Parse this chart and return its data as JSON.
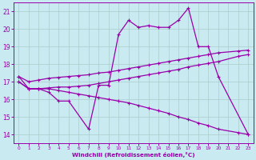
{
  "xlabel": "Windchill (Refroidissement éolien,°C)",
  "line_color": "#9900aa",
  "bg_color": "#c8eaf0",
  "grid_color": "#aacccc",
  "ylim": [
    13.5,
    21.5
  ],
  "yticks": [
    14,
    15,
    16,
    17,
    18,
    19,
    20,
    21
  ],
  "xlim": [
    -0.5,
    23.5
  ],
  "xticks": [
    0,
    1,
    2,
    3,
    4,
    5,
    6,
    7,
    8,
    9,
    10,
    11,
    12,
    13,
    14,
    15,
    16,
    17,
    18,
    19,
    20,
    21,
    22,
    23
  ],
  "s1_x": [
    0,
    1,
    2,
    3,
    4,
    5,
    7,
    8,
    9,
    10,
    11,
    12,
    13,
    14,
    15,
    16,
    17,
    18,
    19,
    20,
    23
  ],
  "s1_y": [
    17.3,
    16.6,
    16.6,
    16.4,
    15.9,
    15.9,
    14.3,
    16.8,
    16.8,
    19.7,
    20.5,
    20.1,
    20.2,
    20.1,
    20.1,
    20.5,
    21.2,
    19.0,
    19.0,
    17.3,
    14.0
  ],
  "s2_x": [
    0,
    1,
    2,
    3,
    4,
    5,
    6,
    7,
    8,
    9,
    10,
    11,
    12,
    13,
    14,
    15,
    16,
    17,
    18,
    19,
    20,
    22,
    23
  ],
  "s2_y": [
    17.3,
    17.0,
    17.1,
    17.2,
    17.25,
    17.3,
    17.35,
    17.4,
    17.5,
    17.55,
    17.65,
    17.75,
    17.85,
    17.95,
    18.05,
    18.15,
    18.25,
    18.35,
    18.45,
    18.55,
    18.65,
    18.75,
    18.8
  ],
  "s3_x": [
    0,
    1,
    2,
    3,
    4,
    5,
    6,
    7,
    8,
    9,
    10,
    11,
    12,
    13,
    14,
    15,
    16,
    17,
    18,
    19,
    20,
    22,
    23
  ],
  "s3_y": [
    17.0,
    16.6,
    16.6,
    16.65,
    16.7,
    16.7,
    16.75,
    16.8,
    16.9,
    17.0,
    17.1,
    17.2,
    17.3,
    17.4,
    17.5,
    17.6,
    17.7,
    17.85,
    17.95,
    18.05,
    18.15,
    18.45,
    18.55
  ],
  "s4_x": [
    0,
    1,
    2,
    3,
    4,
    5,
    6,
    7,
    8,
    9,
    10,
    11,
    12,
    13,
    14,
    15,
    16,
    17,
    18,
    19,
    20,
    22,
    23
  ],
  "s4_y": [
    17.0,
    16.6,
    16.6,
    16.6,
    16.5,
    16.4,
    16.3,
    16.2,
    16.1,
    16.0,
    15.9,
    15.8,
    15.65,
    15.5,
    15.35,
    15.2,
    15.0,
    14.85,
    14.65,
    14.5,
    14.3,
    14.1,
    14.0
  ]
}
